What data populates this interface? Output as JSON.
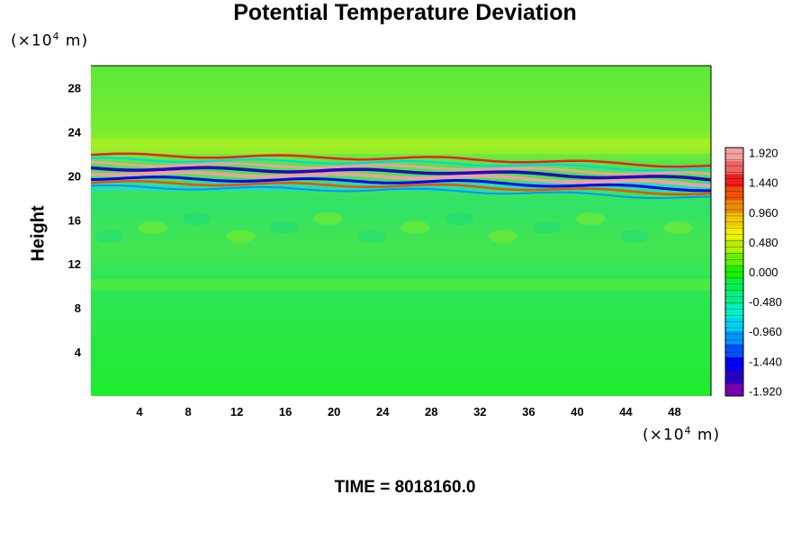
{
  "chart_data": {
    "type": "heatmap",
    "title": "Potential Temperature Deviation",
    "ylabel": "Height",
    "x_unit_prefix": "(×10",
    "x_unit_exp": "4",
    "x_unit_suffix": " m)",
    "y_unit_prefix": "(×10",
    "y_unit_exp": "4",
    "y_unit_suffix": " m)",
    "xlim": [
      0,
      51
    ],
    "ylim": [
      0,
      30
    ],
    "x_ticks": [
      4,
      8,
      12,
      16,
      20,
      24,
      28,
      32,
      36,
      40,
      44,
      48
    ],
    "y_ticks": [
      4,
      8,
      12,
      16,
      20,
      24,
      28
    ],
    "colorbar": {
      "ticks": [
        "1.920",
        "1.440",
        "0.960",
        "0.480",
        "0.000",
        "-0.480",
        "-0.960",
        "-1.440",
        "-1.920"
      ],
      "range": [
        -2.0,
        2.0
      ],
      "colors": [
        "#7a00b4",
        "#2a00c8",
        "#0000ff",
        "#0050ff",
        "#0096ff",
        "#00d2f0",
        "#00f0c8",
        "#00f08c",
        "#00f050",
        "#1ef000",
        "#64f000",
        "#b4f000",
        "#f0f000",
        "#f0c800",
        "#f08c00",
        "#f05000",
        "#f01e1e",
        "#f06464",
        "#f0a0a0"
      ]
    },
    "field_description_bands": [
      {
        "y": 20.7,
        "value": -1.9
      },
      {
        "y": 20.2,
        "value": 1.8
      },
      {
        "y": 19.8,
        "value": -1.6
      },
      {
        "y": 19.5,
        "value": 1.2
      }
    ],
    "footer": "TIME = 8018160.0"
  }
}
